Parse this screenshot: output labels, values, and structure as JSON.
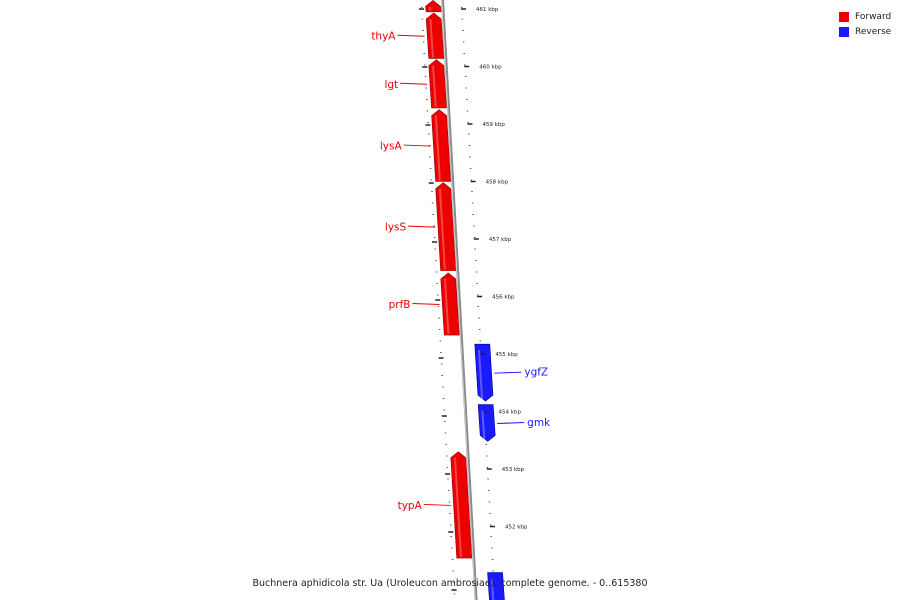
{
  "legend": {
    "forward_label": "Forward",
    "reverse_label": "Reverse",
    "forward_color": "#ee0000",
    "reverse_color": "#1a1aff"
  },
  "ruler": {
    "ticks": [
      {
        "label": "461 kbp",
        "kbp": 461
      },
      {
        "label": "460 kbp",
        "kbp": 460
      },
      {
        "label": "459 kbp",
        "kbp": 459
      },
      {
        "label": "458 kbp",
        "kbp": 458
      },
      {
        "label": "457 kbp",
        "kbp": 457
      },
      {
        "label": "456 kbp",
        "kbp": 456
      },
      {
        "label": "455 kbp",
        "kbp": 455
      },
      {
        "label": "454 kbp",
        "kbp": 454
      },
      {
        "label": "453 kbp",
        "kbp": 453
      },
      {
        "label": "452 kbp",
        "kbp": 452
      }
    ]
  },
  "genes": [
    {
      "name": "",
      "strand": "forward",
      "start_kbp": 461.15,
      "end_kbp": 460.95
    },
    {
      "name": "thyA",
      "strand": "forward",
      "start_kbp": 460.93,
      "end_kbp": 460.14
    },
    {
      "name": "lgt",
      "strand": "forward",
      "start_kbp": 460.12,
      "end_kbp": 459.28
    },
    {
      "name": "lysA",
      "strand": "forward",
      "start_kbp": 459.25,
      "end_kbp": 458.0
    },
    {
      "name": "lysS",
      "strand": "forward",
      "start_kbp": 457.98,
      "end_kbp": 456.45
    },
    {
      "name": "prfB",
      "strand": "forward",
      "start_kbp": 456.41,
      "end_kbp": 455.33
    },
    {
      "name": "ygfZ",
      "strand": "reverse",
      "start_kbp": 455.17,
      "end_kbp": 454.18
    },
    {
      "name": "gmk",
      "strand": "reverse",
      "start_kbp": 454.12,
      "end_kbp": 453.48
    },
    {
      "name": "typA",
      "strand": "forward",
      "start_kbp": 453.3,
      "end_kbp": 451.45
    },
    {
      "name": "",
      "strand": "reverse",
      "start_kbp": 451.2,
      "end_kbp": 450.6
    }
  ],
  "caption": "Buchnera aphidicola str. Ua (Uroleucon ambrosiae), complete genome. - 0..615380"
}
